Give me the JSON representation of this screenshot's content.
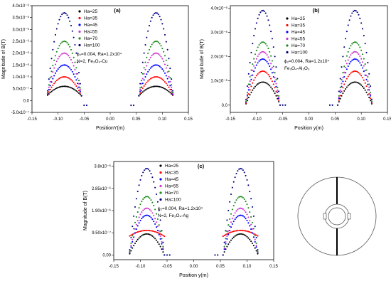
{
  "chart_data": [
    {
      "id": "a",
      "type": "scatter",
      "panel_label": "(a)",
      "xlabel": "PositionY(m)",
      "ylabel": "Magnitude of B(T)",
      "xlim": [
        -0.15,
        0.15
      ],
      "ylim": [
        -5e-07,
        4e-06
      ],
      "xticks": [
        -0.15,
        -0.1,
        -0.05,
        0.0,
        0.05,
        0.1,
        0.15
      ],
      "xtick_labels": [
        "-0.15",
        "-0.10",
        "-0.05",
        "0.00",
        "0.05",
        "0.10",
        "0.15"
      ],
      "yticks": [
        -5e-07,
        0,
        5e-07,
        1e-06,
        1.5e-06,
        2e-06,
        2.5e-06,
        3e-06,
        3.5e-06,
        4e-06
      ],
      "ytick_labels": [
        "-5.0x10⁻⁷",
        "0.0",
        "5.0x10⁻⁷",
        "1.0x10⁻⁶",
        "1.5x10⁻⁶",
        "2.0x10⁻⁶",
        "2.5x10⁻⁶",
        "3.0x10⁻⁶",
        "3.5x10⁻⁶",
        "4.0x10⁻⁶"
      ],
      "annotation_lines": [
        "ϕ₂=0.004, Ra=1.2x10⁴",
        "N=2, Fe₃O₄-Cu"
      ],
      "series": [
        {
          "name": "Ha=25",
          "color": "#000000",
          "peak": 6e-07,
          "end": 2e-07
        },
        {
          "name": "Ha=35",
          "color": "#ff0000",
          "peak": 1e-06,
          "end": 2e-07
        },
        {
          "name": "Ha=45",
          "color": "#0000ff",
          "peak": 1.5e-06,
          "end": 2e-07
        },
        {
          "name": "Ha=55",
          "color": "#cc33cc",
          "peak": 2e-06,
          "end": 2e-07
        },
        {
          "name": "Ha=70",
          "color": "#1a8a1a",
          "peak": 2.5e-06,
          "end": 2e-07
        },
        {
          "name": "Ha=100",
          "color": "#000080",
          "peak": 3.7e-06,
          "end": 2e-07
        }
      ],
      "lobe_ranges": [
        [
          -0.12,
          -0.055
        ],
        [
          0.055,
          0.12
        ]
      ],
      "lobe_centers": [
        -0.088,
        0.088
      ],
      "gap_points": {
        "x": [
          -0.05,
          -0.045,
          0.04,
          0.045
        ],
        "y": -2e-07
      }
    },
    {
      "id": "b",
      "type": "scatter",
      "panel_label": "(b)",
      "xlabel": "Position y(m)",
      "ylabel": "Magnitude of B(T)",
      "xlim": [
        -0.15,
        0.15
      ],
      "ylim": [
        -3e-07,
        4.1e-06
      ],
      "xticks": [
        -0.15,
        -0.1,
        -0.05,
        0.0,
        0.05,
        0.1,
        0.15
      ],
      "xtick_labels": [
        "-0.15",
        "-0.10",
        "-0.05",
        "0.00",
        "0.05",
        "0.10",
        "0.15"
      ],
      "yticks": [
        0,
        1e-06,
        2e-06,
        3e-06,
        4e-06
      ],
      "ytick_labels": [
        "0.0",
        "1.0x10⁻⁶",
        "2.0x10⁻⁶",
        "3.0x10⁻⁶",
        "4.0x10⁻⁶"
      ],
      "annotation_lines": [
        "ϕ₂=0.004, Ra=1.2x10⁴",
        "Fe₃O₄-Al₂O₃"
      ],
      "series": [
        {
          "name": "Ha=25",
          "color": "#000000",
          "peak": 9.5e-07,
          "end": 0.0
        },
        {
          "name": "Ha=35",
          "color": "#ff0000",
          "peak": 1.4e-06,
          "end": 0.0
        },
        {
          "name": "Ha=45",
          "color": "#0000ff",
          "peak": 1.9e-06,
          "end": 0.0
        },
        {
          "name": "Ha=55",
          "color": "#cc33cc",
          "peak": 2.2e-06,
          "end": 0.0
        },
        {
          "name": "Ha=70",
          "color": "#1a8a1a",
          "peak": 2.6e-06,
          "end": 0.0
        },
        {
          "name": "Ha=100",
          "color": "#000080",
          "peak": 3.9e-06,
          "end": 0.0
        }
      ],
      "lobe_ranges": [
        [
          -0.12,
          -0.055
        ],
        [
          0.055,
          0.12
        ]
      ],
      "lobe_centers": [
        -0.088,
        0.088
      ],
      "gap_points": {
        "x": [
          -0.05,
          -0.045,
          0.04,
          0.045
        ],
        "y": 0.0
      }
    },
    {
      "id": "c",
      "type": "scatter",
      "panel_label": "(c)",
      "xlabel": "Position y(m)",
      "ylabel": "Magnitude of B(T)",
      "xlim": [
        -0.15,
        0.15
      ],
      "ylim": [
        -2e-07,
        4e-06
      ],
      "xticks": [
        -0.15,
        -0.1,
        -0.05,
        0.0,
        0.05,
        0.1,
        0.15
      ],
      "xtick_labels": [
        "-0.15",
        "-0.10",
        "-0.05",
        "0.00",
        "0.05",
        "0.10",
        "0.15"
      ],
      "yticks": [
        0,
        9.5e-07,
        1.9e-06,
        2.85e-06,
        3.8e-06
      ],
      "ytick_labels": [
        "0.00",
        "9.50x10⁻⁷",
        "1.90x10⁻⁶",
        "2.85x10⁻⁶",
        "3.8x10⁻⁶"
      ],
      "annotation_lines": [
        "ϕ₂=0.004, Ra=1.2x10⁴",
        "N=2, Fe₃O₄-Ag"
      ],
      "series": [
        {
          "name": "Ha=25",
          "color": "#000000",
          "peak": 9e-07,
          "end": 0.0
        },
        {
          "name": "Ha=35",
          "color": "#ff0000",
          "peak": 1.05e-06,
          "end": 8e-07
        },
        {
          "name": "Ha=45",
          "color": "#0000ff",
          "peak": 1.7e-06,
          "end": 0.0
        },
        {
          "name": "Ha=55",
          "color": "#cc33cc",
          "peak": 2e-06,
          "end": 0.0
        },
        {
          "name": "Ha=70",
          "color": "#1a8a1a",
          "peak": 2.5e-06,
          "end": 0.0
        },
        {
          "name": "Ha=100",
          "color": "#000080",
          "peak": 3.7e-06,
          "end": 0.0
        }
      ],
      "lobe_ranges": [
        [
          -0.12,
          -0.055
        ],
        [
          0.055,
          0.12
        ]
      ],
      "lobe_centers": [
        -0.088,
        0.088
      ],
      "gap_points": {
        "x": [
          -0.05,
          -0.045,
          0.04,
          0.045
        ],
        "y": 0.0
      }
    }
  ]
}
